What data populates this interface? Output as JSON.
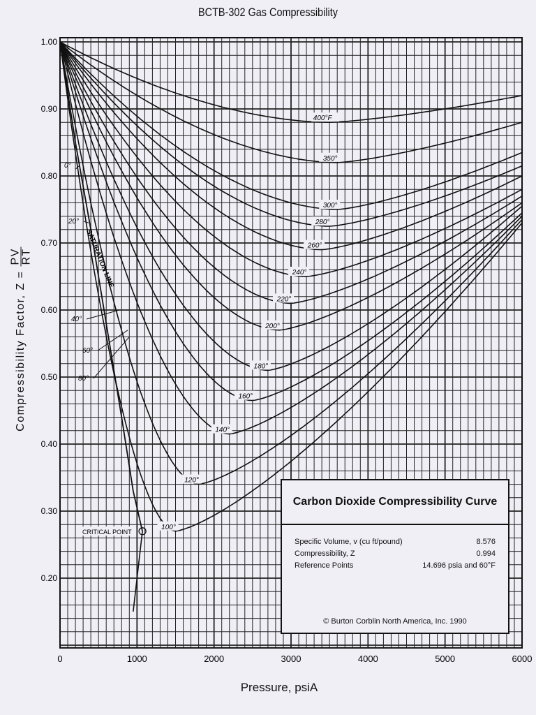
{
  "chart_data": {
    "type": "line",
    "title": "BCTB-302 Gas Compressibility",
    "xlabel": "Pressure, psiA",
    "ylabel": "Compressibility Factor, Z =",
    "ylabel_fraction": {
      "numerator": "PV",
      "denominator": "RT"
    },
    "xlim": [
      0,
      6000
    ],
    "ylim": [
      0.096,
      1.0
    ],
    "grid": true,
    "x_ticks": [
      "0",
      "1000",
      "2000",
      "3000",
      "4000",
      "5000",
      "6000"
    ],
    "y_ticks": [
      "1.00",
      "0.90",
      "0.80",
      "0.70",
      "0.60",
      "0.50",
      "0.40",
      "0.30",
      "0.20"
    ],
    "series": [
      {
        "name": "400°F",
        "label": "400°F",
        "min": [
          3500,
          0.88
        ],
        "end": [
          6000,
          0.92
        ]
      },
      {
        "name": "350°",
        "label": "350°",
        "min": [
          3600,
          0.82
        ],
        "end": [
          6000,
          0.88
        ]
      },
      {
        "name": "300°",
        "label": "300°",
        "min": [
          3600,
          0.75
        ],
        "end": [
          6000,
          0.835
        ]
      },
      {
        "name": "280°",
        "label": "280°",
        "min": [
          3500,
          0.725
        ],
        "end": [
          6000,
          0.815
        ]
      },
      {
        "name": "260°",
        "label": "260°",
        "min": [
          3400,
          0.69
        ],
        "end": [
          6000,
          0.8
        ]
      },
      {
        "name": "240°",
        "label": "240°",
        "min": [
          3200,
          0.65
        ],
        "end": [
          6000,
          0.78
        ]
      },
      {
        "name": "220°",
        "label": "220°",
        "min": [
          3000,
          0.61
        ],
        "end": [
          6000,
          0.77
        ]
      },
      {
        "name": "200°",
        "label": "200°",
        "min": [
          2850,
          0.57
        ],
        "end": [
          6000,
          0.76
        ]
      },
      {
        "name": "180°",
        "label": "180°",
        "min": [
          2700,
          0.51
        ],
        "end": [
          6000,
          0.755
        ]
      },
      {
        "name": "160°",
        "label": "160°",
        "min": [
          2500,
          0.465
        ],
        "end": [
          6000,
          0.745
        ]
      },
      {
        "name": "140°",
        "label": "140°",
        "min": [
          2200,
          0.415
        ],
        "end": [
          6000,
          0.74
        ]
      },
      {
        "name": "120°",
        "label": "120°",
        "min": [
          1800,
          0.34
        ],
        "end": [
          6000,
          0.735
        ]
      },
      {
        "name": "100°",
        "label": "100°",
        "min": [
          1500,
          0.27
        ],
        "end": [
          6000,
          0.73
        ]
      }
    ],
    "saturation_line": {
      "label": "SATURATION LINE",
      "points": [
        [
          0,
          1.0
        ],
        [
          200,
          0.85
        ],
        [
          400,
          0.72
        ],
        [
          600,
          0.58
        ],
        [
          800,
          0.44
        ],
        [
          950,
          0.33
        ],
        [
          1070,
          0.27
        ]
      ],
      "tail": [
        [
          1070,
          0.27
        ],
        [
          1020,
          0.22
        ],
        [
          950,
          0.15
        ]
      ],
      "temperature_labels": [
        {
          "label": "0°",
          "at": [
            200,
            0.81
          ]
        },
        {
          "label": "20°",
          "at": [
            370,
            0.73
          ]
        },
        {
          "label": "40°",
          "at": [
            770,
            0.6
          ]
        },
        {
          "name": "60°",
          "label": "60°",
          "at": [
            880,
            0.57
          ]
        },
        {
          "label": "80°",
          "at": [
            900,
            0.56
          ]
        }
      ]
    },
    "annotations": [
      {
        "label": "CRITICAL POINT",
        "at": [
          1070,
          0.27
        ]
      }
    ]
  },
  "info_box": {
    "title": "Carbon Dioxide Compressibility Curve",
    "rows": [
      {
        "label": "Specific Volume, v (cu ft/pound)",
        "value": "8.576"
      },
      {
        "label": "Compressibility, Z",
        "value": "0.994"
      },
      {
        "label": "Reference Points",
        "value": "14.696 psia and 60°F"
      }
    ],
    "copyright": "© Burton Corblin North America, Inc.  1990"
  }
}
